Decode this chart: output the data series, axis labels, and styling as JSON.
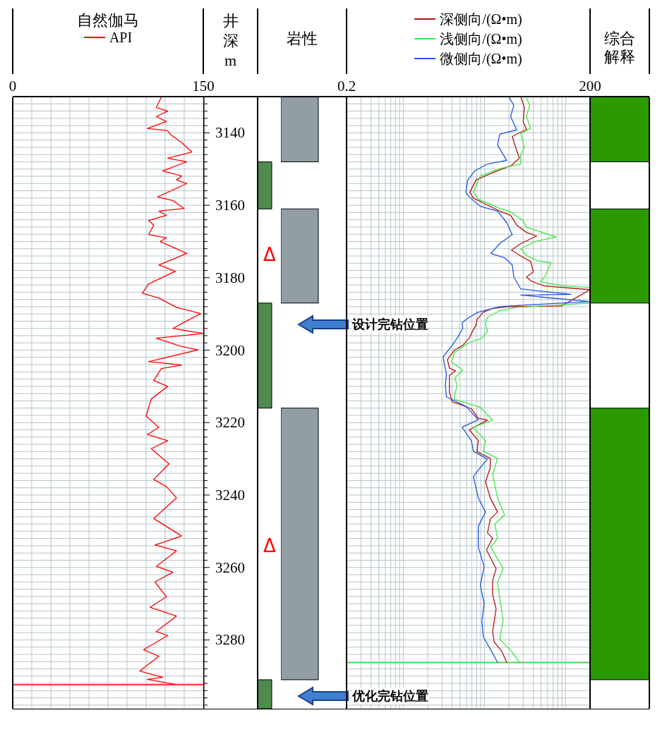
{
  "chart_data": [
    {
      "type": "line",
      "title": "自然伽马",
      "ylabel": "井深 m",
      "legend": "top",
      "grid": true,
      "series": [
        {
          "name": "API",
          "color": "#ff0000",
          "x": [
            117,
            113,
            122,
            113,
            121,
            106,
            122,
            124,
            133,
            141,
            122,
            137,
            118,
            133,
            129,
            137,
            114,
            126,
            135,
            115,
            121,
            107,
            111,
            107,
            121,
            116,
            137,
            115,
            128,
            115,
            107,
            102,
            115,
            129,
            148,
            126,
            150,
            113,
            132,
            146,
            107,
            133,
            117,
            111,
            122,
            109,
            105,
            115,
            106,
            122,
            109,
            123,
            111,
            121,
            129,
            111,
            133,
            112,
            129,
            113,
            126,
            112,
            121,
            108,
            129,
            113,
            122,
            103,
            115,
            100,
            118,
            106,
            128
          ],
          "values": [
            3130.1,
            3133,
            3134,
            3135.5,
            3136.9,
            3138.8,
            3139.4,
            3140.4,
            3142.7,
            3145.3,
            3147,
            3148,
            3150.5,
            3151.9,
            3153,
            3154,
            3157.7,
            3158.7,
            3160.9,
            3161.6,
            3162.8,
            3164.2,
            3165.5,
            3168.1,
            3169,
            3170,
            3173.3,
            3176.5,
            3178.2,
            3180.4,
            3181.7,
            3184.3,
            3185.6,
            3188.2,
            3189.9,
            3194,
            3195.4,
            3196.7,
            3198.9,
            3199.9,
            3203.2,
            3204.1,
            3205.1,
            3208.4,
            3210,
            3213.5,
            3218.2,
            3221.3,
            3223.3,
            3225,
            3227.2,
            3231.4,
            3235.7,
            3237.7,
            3240.8,
            3246.5,
            3251.3,
            3253.8,
            3255.4,
            3259.7,
            3261.3,
            3264,
            3268.1,
            3271,
            3273.4,
            3277.7,
            3278.8,
            3282.7,
            3284.5,
            3288.6,
            3290.3,
            3290.9,
            3292.3
          ]
        }
      ],
      "ref_lines": [
        {
          "axis": "y",
          "value": 3292.4,
          "color": "#ff0000"
        }
      ],
      "xlim": [
        0,
        150
      ],
      "xticks": [
        0,
        {
          "value": 15,
          "label": null
        },
        {
          "value": 30,
          "label": null
        },
        {
          "value": 45,
          "label": null
        },
        {
          "value": 60,
          "label": null
        },
        {
          "value": 75,
          "label": null
        },
        {
          "value": 90,
          "label": null
        },
        {
          "value": 105,
          "label": null
        },
        {
          "value": 120,
          "label": null
        },
        {
          "value": 135,
          "label": null
        },
        150
      ],
      "ylim": [
        3299,
        3130
      ],
      "yticks": [
        {
          "value": 3132,
          "label": null
        },
        {
          "value": 3134,
          "label": null
        },
        {
          "value": 3136,
          "label": null
        },
        {
          "value": 3138,
          "label": null
        },
        3140,
        {
          "value": 3142,
          "label": null
        },
        {
          "value": 3144,
          "label": null
        },
        {
          "value": 3146,
          "label": null
        },
        {
          "value": 3148,
          "label": null
        },
        {
          "value": 3150,
          "label": null
        },
        {
          "value": 3152,
          "label": null
        },
        {
          "value": 3154,
          "label": null
        },
        {
          "value": 3156,
          "label": null
        },
        {
          "value": 3158,
          "label": null
        },
        3160,
        {
          "value": 3162,
          "label": null
        },
        {
          "value": 3164,
          "label": null
        },
        {
          "value": 3166,
          "label": null
        },
        {
          "value": 3168,
          "label": null
        },
        {
          "value": 3170,
          "label": null
        },
        {
          "value": 3172,
          "label": null
        },
        {
          "value": 3174,
          "label": null
        },
        {
          "value": 3176,
          "label": null
        },
        {
          "value": 3178,
          "label": null
        },
        3180,
        {
          "value": 3182,
          "label": null
        },
        {
          "value": 3184,
          "label": null
        },
        {
          "value": 3186,
          "label": null
        },
        {
          "value": 3188,
          "label": null
        },
        {
          "value": 3190,
          "label": null
        },
        {
          "value": 3192,
          "label": null
        },
        {
          "value": 3194,
          "label": null
        },
        {
          "value": 3196,
          "label": null
        },
        {
          "value": 3198,
          "label": null
        },
        3200,
        {
          "value": 3202,
          "label": null
        },
        {
          "value": 3204,
          "label": null
        },
        {
          "value": 3206,
          "label": null
        },
        {
          "value": 3208,
          "label": null
        },
        {
          "value": 3210,
          "label": null
        },
        {
          "value": 3212,
          "label": null
        },
        {
          "value": 3214,
          "label": null
        },
        {
          "value": 3216,
          "label": null
        },
        {
          "value": 3218,
          "label": null
        },
        3220,
        {
          "value": 3222,
          "label": null
        },
        {
          "value": 3224,
          "label": null
        },
        {
          "value": 3226,
          "label": null
        },
        {
          "value": 3228,
          "label": null
        },
        {
          "value": 3230,
          "label": null
        },
        {
          "value": 3232,
          "label": null
        },
        {
          "value": 3234,
          "label": null
        },
        {
          "value": 3236,
          "label": null
        },
        {
          "value": 3238,
          "label": null
        },
        3240,
        {
          "value": 3242,
          "label": null
        },
        {
          "value": 3244,
          "label": null
        },
        {
          "value": 3246,
          "label": null
        },
        {
          "value": 3248,
          "label": null
        },
        {
          "value": 3250,
          "label": null
        },
        {
          "value": 3252,
          "label": null
        },
        {
          "value": 3254,
          "label": null
        },
        {
          "value": 3256,
          "label": null
        },
        {
          "value": 3258,
          "label": null
        },
        3260,
        {
          "value": 3262,
          "label": null
        },
        {
          "value": 3264,
          "label": null
        },
        {
          "value": 3266,
          "label": null
        },
        {
          "value": 3268,
          "label": null
        },
        {
          "value": 3270,
          "label": null
        },
        {
          "value": 3272,
          "label": null
        },
        {
          "value": 3274,
          "label": null
        },
        {
          "value": 3276,
          "label": null
        },
        {
          "value": 3278,
          "label": null
        },
        3280,
        {
          "value": 3282,
          "label": null
        },
        {
          "value": 3284,
          "label": null
        },
        {
          "value": 3286,
          "label": null
        },
        {
          "value": 3288,
          "label": null
        },
        {
          "value": 3290,
          "label": null
        },
        {
          "value": 3292,
          "label": null
        },
        {
          "value": 3294,
          "label": null
        },
        {
          "value": 3296,
          "label": null
        },
        {
          "value": 3298,
          "label": null
        }
      ]
    },
    {
      "type": "bar",
      "title": "岩性",
      "categories": [
        null
      ],
      "tick_labels": false,
      "ylim": [
        3299,
        3130
      ],
      "series": [
        {
          "color": "#4f8a4f",
          "values": [
            13
          ],
          "base": [
            3148
          ]
        },
        {
          "color": "#4f8a4f",
          "values": [
            29
          ],
          "base": [
            3187
          ]
        },
        {
          "color": "#4f8a4f",
          "values": [
            8
          ],
          "base": [
            3291
          ]
        }
      ],
      "annotations": [
        "Δ",
        "Δ"
      ]
    },
    {
      "type": "bar",
      "categories": [
        null
      ],
      "tick_labels": false,
      "ylim": [
        3299,
        3130
      ],
      "series": [
        {
          "color": "#919fa5",
          "values": [
            18
          ],
          "base": [
            3130
          ]
        },
        {
          "color": "#919fa5",
          "values": [
            26
          ],
          "base": [
            3161
          ]
        },
        {
          "color": "#919fa5",
          "values": [
            75
          ],
          "base": [
            3216
          ]
        }
      ]
    },
    {
      "type": "line",
      "log": "x",
      "legend": "top",
      "grid": true,
      "tick_labels": "x",
      "series": [
        {
          "name": "深侧向/(Ω•m)",
          "color": "#b01515",
          "x": [
            28,
            31,
            30,
            33,
            22,
            25,
            27,
            21.5,
            12.6,
            7.9,
            6.6,
            7.3,
            10.3,
            15.4,
            21,
            25,
            33,
            44,
            28,
            21.5,
            28,
            37,
            40,
            33,
            38,
            55,
            200,
            89,
            20,
            12.6,
            9.7,
            8.1,
            7.9,
            6.9,
            6.5,
            5.4,
            4.3,
            3.5,
            3.7,
            4.4,
            3.7,
            3.7,
            4.0,
            4.9,
            6.9,
            8.4,
            10.9,
            6.5,
            8.4,
            8.1,
            11.8,
            11.8,
            10.3,
            11.8,
            14.5,
            11.8,
            10.9,
            12.6,
            10.6,
            13.9,
            12.6,
            12.6,
            13.9,
            12.6,
            13.2,
            16.3,
            18.8
          ],
          "values": [
            3130.1,
            3133,
            3137,
            3139,
            3141,
            3145,
            3147,
            3149,
            3151,
            3153,
            3156.4,
            3158,
            3159.7,
            3161.6,
            3162.8,
            3165.5,
            3167.5,
            3168.5,
            3170.6,
            3172.4,
            3174,
            3175.5,
            3178.4,
            3179.8,
            3181,
            3182.3,
            3183.3,
            3187.8,
            3188,
            3188.5,
            3189.5,
            3191.5,
            3193,
            3195.4,
            3196.7,
            3198.7,
            3199.9,
            3202.6,
            3205,
            3205.7,
            3207,
            3211.6,
            3214.3,
            3214.9,
            3216.2,
            3218.8,
            3219.3,
            3222,
            3225,
            3228,
            3229.9,
            3232.4,
            3236.3,
            3240.8,
            3244.7,
            3246.6,
            3250.5,
            3251.9,
            3255.2,
            3260.3,
            3263.6,
            3267.5,
            3271.4,
            3277.8,
            3280.6,
            3283.1,
            3286.2
          ]
        },
        {
          "name": "浅侧向/(Ω•m)",
          "color": "#3ee83e",
          "x": [
            33,
            36,
            33,
            37,
            28,
            31,
            28,
            28,
            15.4,
            8.9,
            7.3,
            8.4,
            15.4,
            20,
            30,
            33,
            77,
            42,
            28,
            33,
            45,
            66,
            55,
            49,
            95,
            200,
            200,
            73,
            25,
            15.4,
            10.9,
            10.3,
            10.9,
            9.3,
            6.5,
            4.3,
            3.9,
            5.4,
            4.3,
            4.6,
            4.2,
            8.9,
            12.6,
            7.3,
            10.3,
            9.7,
            14.5,
            12.6,
            14.5,
            17.7,
            13.4,
            14.5,
            12,
            17,
            14.5,
            15.4,
            17,
            15.4,
            21.5,
            27
          ],
          "values": [
            3130.4,
            3132.4,
            3135.5,
            3138.8,
            3140.2,
            3144.1,
            3146,
            3148.6,
            3149.9,
            3151.9,
            3156.4,
            3158.3,
            3160.9,
            3161.6,
            3164.2,
            3166.1,
            3168.7,
            3170,
            3172,
            3173.9,
            3175.3,
            3175.9,
            3179.8,
            3181.1,
            3182.3,
            3182.7,
            3187,
            3187.6,
            3188.2,
            3189.1,
            3190.9,
            3192.8,
            3194.8,
            3196.7,
            3197.9,
            3200.6,
            3203.2,
            3205.5,
            3207.7,
            3209.6,
            3213.5,
            3215.8,
            3219.3,
            3221.3,
            3225,
            3227.9,
            3229.9,
            3234.4,
            3240.8,
            3245.5,
            3248,
            3251.9,
            3254.4,
            3260.3,
            3264.2,
            3268.1,
            3274.7,
            3279.8,
            3283.1,
            3286.2
          ]
        },
        {
          "name": "微侧向/(Ω•m)",
          "color": "#2255e0",
          "x": [
            20,
            23,
            21,
            25,
            15.4,
            14.5,
            16.3,
            18.8,
            10.9,
            7.6,
            6.2,
            5.9,
            6.5,
            8.9,
            14.5,
            18.8,
            22,
            15.4,
            12,
            17.7,
            22,
            23,
            28,
            116,
            28,
            200,
            28,
            15.4,
            8.4,
            6.5,
            5.3,
            5.4,
            4.6,
            4.0,
            3.1,
            3.2,
            3.4,
            3.3,
            3.4,
            5.9,
            8.4,
            5.3,
            6.9,
            7.3,
            10.9,
            8.9,
            7.3,
            8.4,
            10.3,
            8.4,
            8.4,
            9.9,
            8.9,
            9.9,
            9.3,
            9.7,
            12.6,
            14.5
          ],
          "values": [
            3130.1,
            3132.4,
            3135.5,
            3139.2,
            3140.4,
            3143.3,
            3145.3,
            3147.6,
            3148.6,
            3150.5,
            3153.1,
            3156.4,
            3157.7,
            3160.3,
            3161.6,
            3164.8,
            3168.1,
            3170.6,
            3173.3,
            3174.5,
            3176.5,
            3179.8,
            3183.1,
            3184.6,
            3184.8,
            3186.6,
            3187.6,
            3188,
            3189.5,
            3190.9,
            3192.4,
            3194,
            3196.7,
            3198.7,
            3201.8,
            3203.8,
            3206.5,
            3209.6,
            3212.9,
            3215.5,
            3219.2,
            3221.3,
            3225,
            3227.9,
            3230.1,
            3232.4,
            3234.9,
            3240.8,
            3244.7,
            3248.6,
            3254.4,
            3259.7,
            3264.9,
            3270,
            3274.7,
            3279.2,
            3283.7,
            3286.2
          ]
        }
      ],
      "ref_lines": [
        {
          "axis": "y",
          "value": 3286.3,
          "color": "#3ee83e"
        }
      ],
      "annotations": [
        "设计完钻位置",
        "优化完钻位置"
      ],
      "xlim": [
        0.2,
        200
      ],
      "xticks": [
        0.2,
        {
          "value": 0.3,
          "label": null
        },
        {
          "value": 0.4,
          "label": null
        },
        {
          "value": 0.5,
          "label": null
        },
        {
          "value": 0.6,
          "label": null
        },
        {
          "value": 0.7,
          "label": null
        },
        {
          "value": 0.8,
          "label": null
        },
        {
          "value": 0.9,
          "label": null
        },
        {
          "value": 1,
          "label": null
        },
        {
          "value": 2,
          "label": null
        },
        {
          "value": 3,
          "label": null
        },
        {
          "value": 4,
          "label": null
        },
        {
          "value": 5,
          "label": null
        },
        {
          "value": 6,
          "label": null
        },
        {
          "value": 7,
          "label": null
        },
        {
          "value": 8,
          "label": null
        },
        {
          "value": 9,
          "label": null
        },
        {
          "value": 10,
          "label": null
        },
        {
          "value": 20,
          "label": null
        },
        {
          "value": 30,
          "label": null
        },
        {
          "value": 40,
          "label": null
        },
        {
          "value": 50,
          "label": null
        },
        {
          "value": 60,
          "label": null
        },
        {
          "value": 70,
          "label": null
        },
        {
          "value": 80,
          "label": null
        },
        {
          "value": 90,
          "label": null
        },
        {
          "value": 100,
          "label": null
        },
        200
      ],
      "ylim": [
        3299,
        3130
      ],
      "yticks": [
        {
          "value": 3132,
          "label": null
        },
        {
          "value": 3134,
          "label": null
        },
        {
          "value": 3136,
          "label": null
        },
        {
          "value": 3138,
          "label": null
        },
        {
          "value": 3140,
          "label": null
        },
        {
          "value": 3142,
          "label": null
        },
        {
          "value": 3144,
          "label": null
        },
        {
          "value": 3146,
          "label": null
        },
        {
          "value": 3148,
          "label": null
        },
        {
          "value": 3150,
          "label": null
        },
        {
          "value": 3152,
          "label": null
        },
        {
          "value": 3154,
          "label": null
        },
        {
          "value": 3156,
          "label": null
        },
        {
          "value": 3158,
          "label": null
        },
        {
          "value": 3160,
          "label": null
        },
        {
          "value": 3162,
          "label": null
        },
        {
          "value": 3164,
          "label": null
        },
        {
          "value": 3166,
          "label": null
        },
        {
          "value": 3168,
          "label": null
        },
        {
          "value": 3170,
          "label": null
        },
        {
          "value": 3172,
          "label": null
        },
        {
          "value": 3174,
          "label": null
        },
        {
          "value": 3176,
          "label": null
        },
        {
          "value": 3178,
          "label": null
        },
        {
          "value": 3180,
          "label": null
        },
        {
          "value": 3182,
          "label": null
        },
        {
          "value": 3184,
          "label": null
        },
        {
          "value": 3186,
          "label": null
        },
        {
          "value": 3188,
          "label": null
        },
        {
          "value": 3190,
          "label": null
        },
        {
          "value": 3192,
          "label": null
        },
        {
          "value": 3194,
          "label": null
        },
        {
          "value": 3196,
          "label": null
        },
        {
          "value": 3198,
          "label": null
        },
        {
          "value": 3200,
          "label": null
        },
        {
          "value": 3202,
          "label": null
        },
        {
          "value": 3204,
          "label": null
        },
        {
          "value": 3206,
          "label": null
        },
        {
          "value": 3208,
          "label": null
        },
        {
          "value": 3210,
          "label": null
        },
        {
          "value": 3212,
          "label": null
        },
        {
          "value": 3214,
          "label": null
        },
        {
          "value": 3216,
          "label": null
        },
        {
          "value": 3218,
          "label": null
        },
        {
          "value": 3220,
          "label": null
        },
        {
          "value": 3222,
          "label": null
        },
        {
          "value": 3224,
          "label": null
        },
        {
          "value": 3226,
          "label": null
        },
        {
          "value": 3228,
          "label": null
        },
        {
          "value": 3230,
          "label": null
        },
        {
          "value": 3232,
          "label": null
        },
        {
          "value": 3234,
          "label": null
        },
        {
          "value": 3236,
          "label": null
        },
        {
          "value": 3238,
          "label": null
        },
        {
          "value": 3240,
          "label": null
        },
        {
          "value": 3242,
          "label": null
        },
        {
          "value": 3244,
          "label": null
        },
        {
          "value": 3246,
          "label": null
        },
        {
          "value": 3248,
          "label": null
        },
        {
          "value": 3250,
          "label": null
        },
        {
          "value": 3252,
          "label": null
        },
        {
          "value": 3254,
          "label": null
        },
        {
          "value": 3256,
          "label": null
        },
        {
          "value": 3258,
          "label": null
        },
        {
          "value": 3260,
          "label": null
        },
        {
          "value": 3262,
          "label": null
        },
        {
          "value": 3264,
          "label": null
        },
        {
          "value": 3266,
          "label": null
        },
        {
          "value": 3268,
          "label": null
        },
        {
          "value": 3270,
          "label": null
        },
        {
          "value": 3272,
          "label": null
        },
        {
          "value": 3274,
          "label": null
        },
        {
          "value": 3276,
          "label": null
        },
        {
          "value": 3278,
          "label": null
        },
        {
          "value": 3280,
          "label": null
        },
        {
          "value": 3282,
          "label": null
        },
        {
          "value": 3284,
          "label": null
        },
        {
          "value": 3286,
          "label": null
        },
        {
          "value": 3288,
          "label": null
        },
        {
          "value": 3290,
          "label": null
        },
        {
          "value": 3292,
          "label": null
        },
        {
          "value": 3294,
          "label": null
        },
        {
          "value": 3296,
          "label": null
        },
        {
          "value": 3298,
          "label": null
        }
      ]
    },
    {
      "type": "bar",
      "title": "综合解释",
      "categories": [
        null
      ],
      "tick_labels": false,
      "ylim": [
        3299,
        3130
      ],
      "series": [
        {
          "color": "#2a9a00",
          "values": [
            18
          ],
          "base": [
            3130
          ]
        },
        {
          "color": "#2a9a00",
          "values": [
            26
          ],
          "base": [
            3161
          ]
        },
        {
          "color": "#2a9a00",
          "values": [
            75
          ],
          "base": [
            3216
          ]
        }
      ]
    }
  ]
}
